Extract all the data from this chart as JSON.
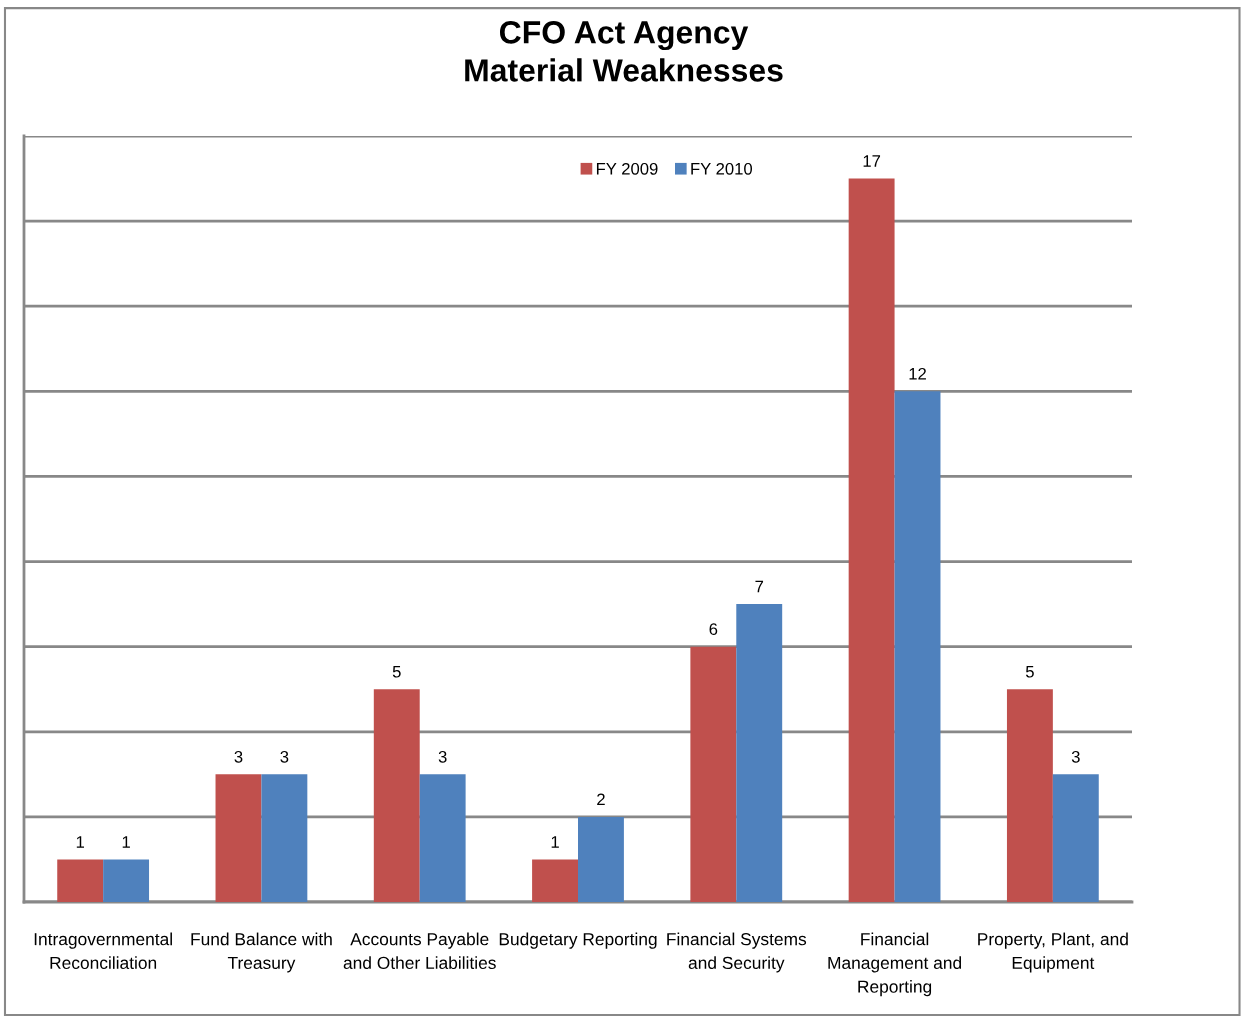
{
  "chart_data": {
    "type": "bar",
    "title": "CFO Act Agency\nMaterial Weaknesses",
    "categories": [
      "Intragovernmental\nReconciliation",
      "Fund Balance with\nTreasury",
      "Accounts Payable\nand Other Liabilities",
      "Budgetary Reporting",
      "Financial Systems\nand Security",
      "Financial\nManagement and\nReporting",
      "Property, Plant, and\nEquipment"
    ],
    "series": [
      {
        "name": "FY 2009",
        "color": "#c0504d",
        "values": [
          1,
          3,
          5,
          1,
          6,
          17,
          5
        ]
      },
      {
        "name": "FY 2010",
        "color": "#4f81bd",
        "values": [
          1,
          3,
          3,
          2,
          7,
          12,
          3
        ]
      }
    ],
    "ylim": [
      0,
      18
    ],
    "yticks": [
      {
        "value": 0,
        "label": null
      },
      {
        "value": 2,
        "label": null
      },
      {
        "value": 4,
        "label": null
      },
      {
        "value": 6,
        "label": null
      },
      {
        "value": 8,
        "label": null
      },
      {
        "value": 10,
        "label": null
      },
      {
        "value": 12,
        "label": null
      },
      {
        "value": 14,
        "label": null
      },
      {
        "value": 16,
        "label": null
      },
      {
        "value": 18,
        "label": null
      }
    ],
    "tick_labels": "x",
    "grid": "y",
    "legend": "top",
    "data_labels": true
  }
}
